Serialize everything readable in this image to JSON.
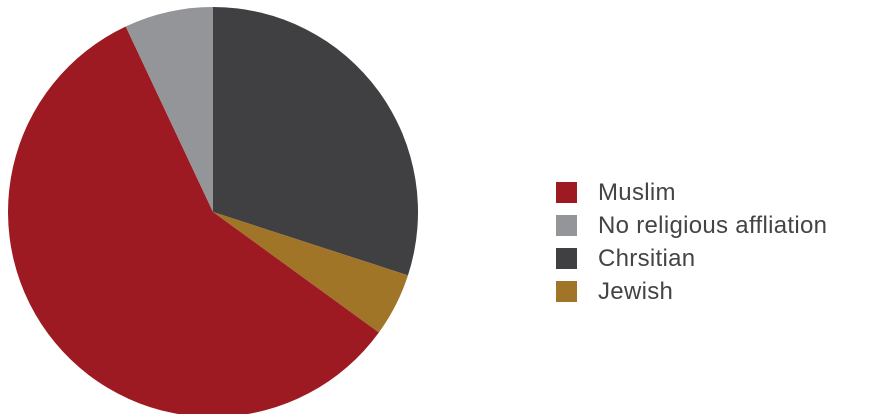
{
  "chart_data": {
    "type": "pie",
    "title": "",
    "categories": [
      "Muslim",
      "No religious affliation",
      "Chrsitian",
      "Jewish"
    ],
    "values": [
      58,
      7,
      30,
      5
    ],
    "colors": [
      "#9e1a22",
      "#939598",
      "#404042",
      "#a17528"
    ],
    "draw_order": [
      2,
      3,
      0,
      1
    ],
    "start_angle_deg": 0,
    "direction": "clockwise",
    "legend_position": "right"
  },
  "legend": {
    "items": [
      {
        "label": "Muslim",
        "color": "#9e1a22"
      },
      {
        "label": "No religious affliation",
        "color": "#939598"
      },
      {
        "label": "Chrsitian",
        "color": "#404042"
      },
      {
        "label": "Jewish",
        "color": "#a17528"
      }
    ]
  }
}
